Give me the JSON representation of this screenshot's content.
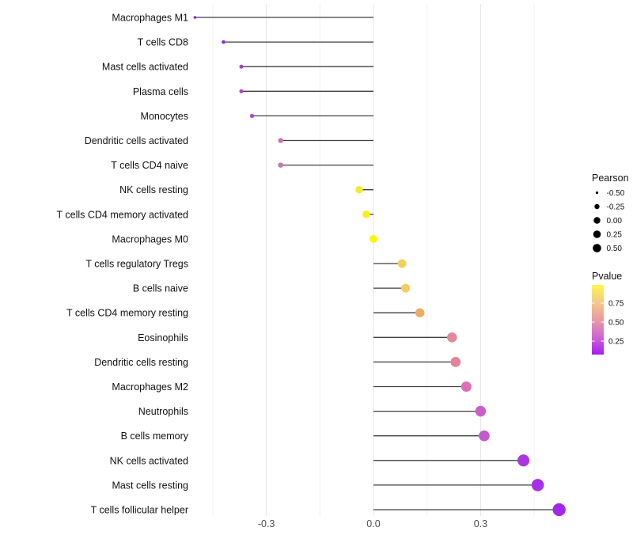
{
  "chart_data": {
    "type": "lollipop",
    "title": "",
    "xlabel": "",
    "ylabel": "",
    "grid": true,
    "x_major_ticks": [
      -0.3,
      0.0,
      0.3
    ],
    "x_tick_labels": [
      "-0.3",
      "0.0",
      "0.3"
    ],
    "x_minor_ticks": [
      -0.45,
      -0.15,
      0.15,
      0.45
    ],
    "xlim": [
      -0.555,
      0.575
    ],
    "stem_color": "#3f3f3f",
    "rows": [
      {
        "label": "Macrophages M1",
        "pearson": -0.5,
        "color": "#8426C4"
      },
      {
        "label": "T cells CD8",
        "pearson": -0.42,
        "color": "#8C2BCE"
      },
      {
        "label": "Mast cells activated",
        "pearson": -0.37,
        "color": "#A243CC"
      },
      {
        "label": "Plasma cells",
        "pearson": -0.37,
        "color": "#A848CA"
      },
      {
        "label": "Monocytes",
        "pearson": -0.34,
        "color": "#AE50C8"
      },
      {
        "label": "Dendritic cells activated",
        "pearson": -0.26,
        "color": "#C878AC"
      },
      {
        "label": "T cells CD4 naive",
        "pearson": -0.26,
        "color": "#C878AC"
      },
      {
        "label": "NK cells resting",
        "pearson": -0.04,
        "color": "#F2EC2E"
      },
      {
        "label": "T cells CD4 memory activated",
        "pearson": -0.02,
        "color": "#F6F215"
      },
      {
        "label": "Macrophages M0",
        "pearson": 0.0,
        "color": "#F9F607"
      },
      {
        "label": "T cells regulatory  Tregs",
        "pearson": 0.08,
        "color": "#F3CF5B"
      },
      {
        "label": "B cells naive",
        "pearson": 0.09,
        "color": "#F3CD5E"
      },
      {
        "label": "T cells CD4 memory resting",
        "pearson": 0.13,
        "color": "#ECAC63"
      },
      {
        "label": "Eosinophils",
        "pearson": 0.22,
        "color": "#E3889A"
      },
      {
        "label": "Dendritic cells resting",
        "pearson": 0.23,
        "color": "#E1839D"
      },
      {
        "label": "Macrophages M2",
        "pearson": 0.26,
        "color": "#D970B8"
      },
      {
        "label": "Neutrophils",
        "pearson": 0.3,
        "color": "#C95FC9"
      },
      {
        "label": "B cells memory",
        "pearson": 0.31,
        "color": "#C458CF"
      },
      {
        "label": "NK cells activated",
        "pearson": 0.42,
        "color": "#AC35E2"
      },
      {
        "label": "Mast cells resting",
        "pearson": 0.46,
        "color": "#A72FE8"
      },
      {
        "label": "T cells follicular helper",
        "pearson": 0.52,
        "color": "#A428EC"
      }
    ],
    "legend_size": {
      "title": "Pearson",
      "items": [
        {
          "label": "-0.50",
          "value": -0.5
        },
        {
          "label": "-0.25",
          "value": -0.25
        },
        {
          "label": "0.00",
          "value": 0.0
        },
        {
          "label": "0.25",
          "value": 0.25
        },
        {
          "label": "0.50",
          "value": 0.5
        }
      ],
      "dot_color": "#000000"
    },
    "legend_color": {
      "title": "Pvalue",
      "tick_labels": [
        "0.75",
        "0.50",
        "0.25"
      ],
      "gradient_stops": [
        {
          "offset": 0.0,
          "color": "#FCF84F"
        },
        {
          "offset": 0.26,
          "color": "#F4C788"
        },
        {
          "offset": 0.5,
          "color": "#E79BA4"
        },
        {
          "offset": 0.78,
          "color": "#CB5FD7"
        },
        {
          "offset": 1.0,
          "color": "#A21BF2"
        }
      ]
    },
    "colors": {
      "grid_major": "#E6E6E6",
      "grid_minor": "#F2F2F2",
      "axis_text": "#4D4D4D",
      "category_text": "#111111",
      "legend_text": "#111111"
    }
  }
}
